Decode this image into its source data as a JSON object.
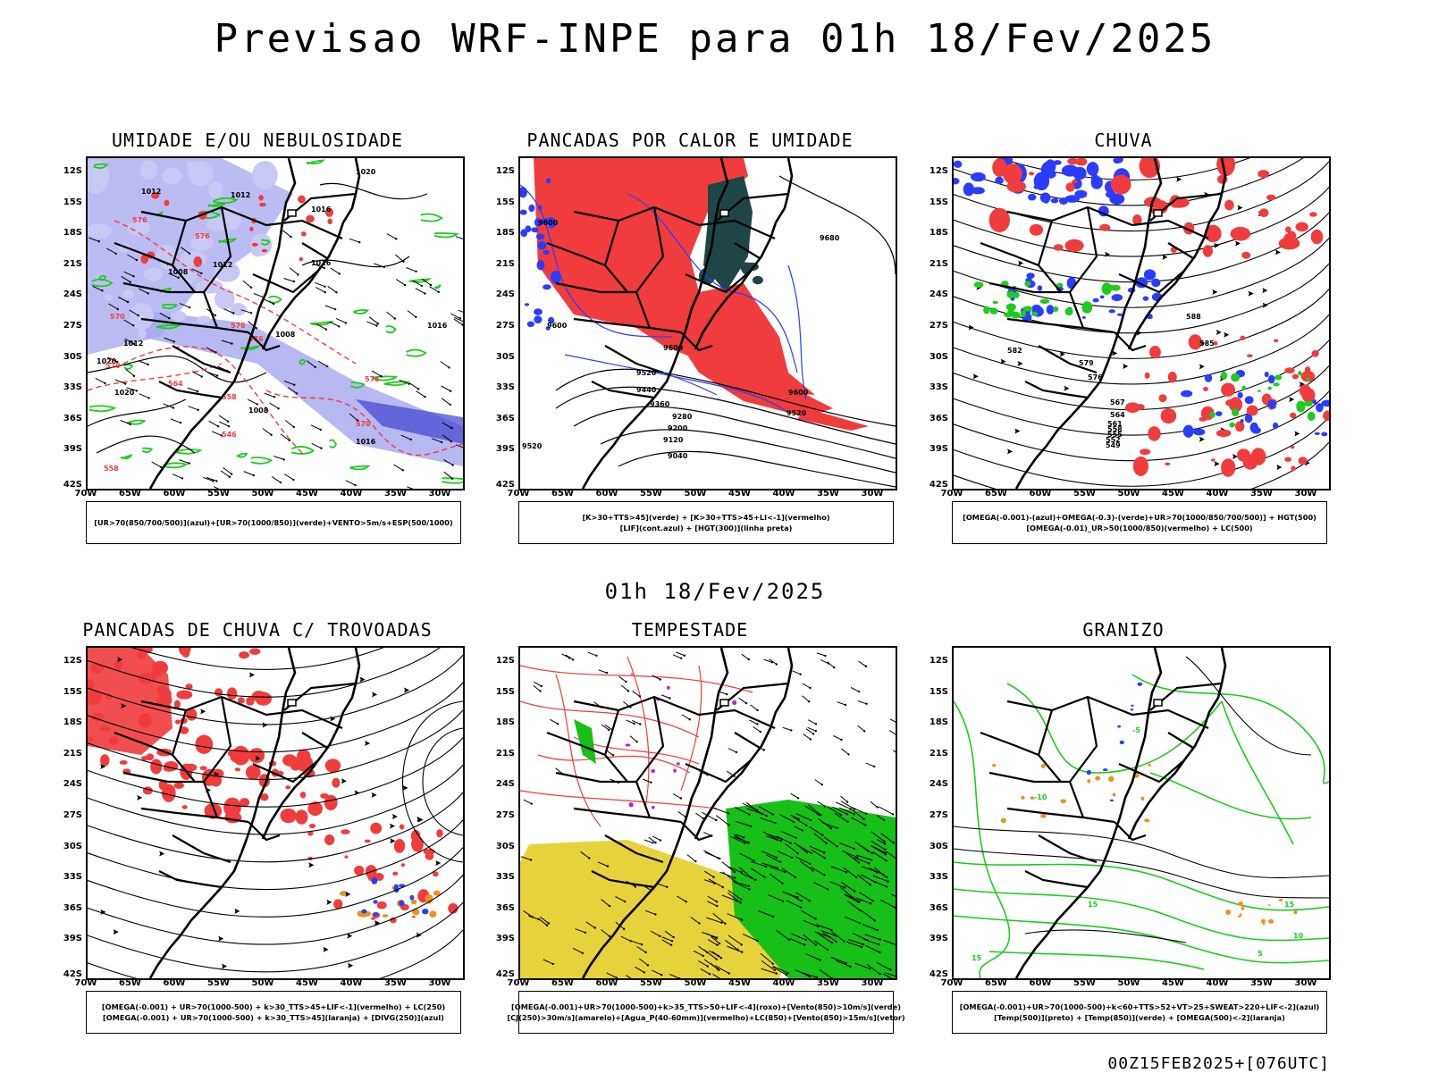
{
  "header": {
    "title": "Previsao WRF-INPE  para 01h 18/Fev/2025"
  },
  "mid_time": "01h 18/Fev/2025",
  "footer": {
    "stamp": "00Z15FEB2025+[076UTC]"
  },
  "axes": {
    "lat_labels": [
      "12S",
      "15S",
      "18S",
      "21S",
      "24S",
      "27S",
      "30S",
      "33S",
      "36S",
      "39S",
      "42S"
    ],
    "lon_labels": [
      "70W",
      "65W",
      "60W",
      "55W",
      "50W",
      "45W",
      "40W",
      "35W",
      "30W"
    ]
  },
  "colors": {
    "red": "#f03c3c",
    "green": "#1ecb1e",
    "blue": "#2a3cff",
    "lavender": "#a6a6f0",
    "orange": "#f0901e",
    "yellow": "#e8d23c",
    "dark_teal": "#1e4646",
    "purple": "#b428c8"
  },
  "panels": [
    {
      "title": "UMIDADE E/OU NEBULOSIDADE",
      "legend": [
        "[UR>70(850/700/500)](azul)+[UR>70(1000/850)](verde)+VENTO>5m/s+ESP(500/1000)"
      ],
      "contour_labels": [
        "1012",
        "1012",
        "1016",
        "1008",
        "1012",
        "1016",
        "1020",
        "1012",
        "1008",
        "1016",
        "1020",
        "1008",
        "1016",
        "1020"
      ],
      "thickness_labels": [
        "576",
        "576",
        "570",
        "576",
        "576",
        "570",
        "564",
        "558",
        "546",
        "570",
        "576",
        "558"
      ]
    },
    {
      "title": "PANCADAS POR CALOR E UMIDADE",
      "legend": [
        "[K>30+TTS>45](verde) + [K>30+TTS>45+LI<-1](vermelho)",
        "[LIF](cont.azul) + [HGT(300)](linha preta)"
      ],
      "contour_labels": [
        "9680",
        "9600",
        "9600",
        "9600",
        "9520",
        "9440",
        "9360",
        "9280",
        "9200",
        "9120",
        "9040",
        "9600",
        "9520",
        "9520"
      ]
    },
    {
      "title": "CHUVA",
      "legend": [
        "[OMEGA(-0.001)-(azul)+OMEGA(-0.3)-(verde)+UR>70(1000/850/700/500)] + HGT(500)",
        "[OMEGA(-0.01)_UR>50(1000/850)(vermelho) + LC(500)"
      ],
      "contour_labels": [
        "582",
        "579",
        "576",
        "567",
        "564",
        "561",
        "558",
        "555",
        "552",
        "549",
        "588",
        "585"
      ]
    },
    {
      "title": "PANCADAS DE CHUVA C/ TROVOADAS",
      "legend": [
        "[OMEGA(-0.001) + UR>70(1000-500) + k>30_TTS>45+LIF<-1](vermelho) + LC(250)",
        "[OMEGA(-0.001) + UR>70(1000-500) + k>30_TTS>45](laranja) + [DIVG(250)](azul)"
      ]
    },
    {
      "title": "TEMPESTADE",
      "legend": [
        "[OMEGA(-0.001)+UR>70(1000-500)+k>35_TTS>50+LIF<-4](roxo)+[Vento(850)>10m/s](verde)",
        "[CJ(250)>30m/s](amarelo)+[Agua_P(40-60mm)](vermelho)+LC(850)+[Vento(850)>15m/s](vetor)"
      ]
    },
    {
      "title": "GRANIZO",
      "legend": [
        "[OMEGA(-0.001)+UR>70(1000-500)+k<60+TTS>52+VT>25+SWEAT>220+LIF<-2](azul)",
        "[Temp(500)](preto) + [Temp(850)](verde) + [OMEGA(500)<-2](laranja)"
      ],
      "contour_labels": [
        "-5",
        "-10",
        "15",
        "15",
        "10",
        "5",
        "15"
      ]
    }
  ]
}
